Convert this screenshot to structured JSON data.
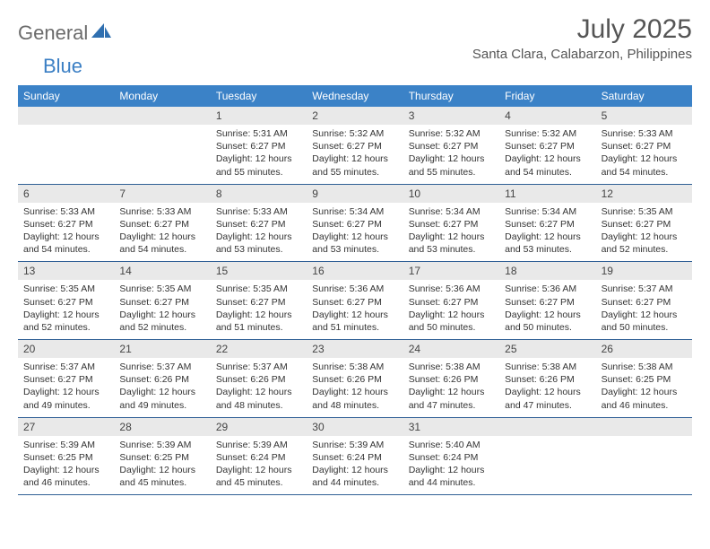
{
  "brand": {
    "text1": "General",
    "text2": "Blue"
  },
  "title": "July 2025",
  "location": "Santa Clara, Calabarzon, Philippines",
  "colors": {
    "header_bg": "#3b82c7",
    "header_text": "#ffffff",
    "daynum_band_bg": "#e9e9e9",
    "week_divider": "#2f5f95",
    "body_text": "#333333",
    "title_text": "#555555",
    "brand_grey": "#6b6b6b",
    "brand_blue": "#3b7fc4"
  },
  "typography": {
    "title_fontsize": 30,
    "location_fontsize": 15,
    "weekday_fontsize": 12,
    "daynum_fontsize": 12,
    "cell_fontsize": 10.5
  },
  "weekdays": [
    "Sunday",
    "Monday",
    "Tuesday",
    "Wednesday",
    "Thursday",
    "Friday",
    "Saturday"
  ],
  "weeks": [
    [
      null,
      null,
      {
        "n": "1",
        "sunrise": "5:31 AM",
        "sunset": "6:27 PM",
        "daylight": "12 hours and 55 minutes."
      },
      {
        "n": "2",
        "sunrise": "5:32 AM",
        "sunset": "6:27 PM",
        "daylight": "12 hours and 55 minutes."
      },
      {
        "n": "3",
        "sunrise": "5:32 AM",
        "sunset": "6:27 PM",
        "daylight": "12 hours and 55 minutes."
      },
      {
        "n": "4",
        "sunrise": "5:32 AM",
        "sunset": "6:27 PM",
        "daylight": "12 hours and 54 minutes."
      },
      {
        "n": "5",
        "sunrise": "5:33 AM",
        "sunset": "6:27 PM",
        "daylight": "12 hours and 54 minutes."
      }
    ],
    [
      {
        "n": "6",
        "sunrise": "5:33 AM",
        "sunset": "6:27 PM",
        "daylight": "12 hours and 54 minutes."
      },
      {
        "n": "7",
        "sunrise": "5:33 AM",
        "sunset": "6:27 PM",
        "daylight": "12 hours and 54 minutes."
      },
      {
        "n": "8",
        "sunrise": "5:33 AM",
        "sunset": "6:27 PM",
        "daylight": "12 hours and 53 minutes."
      },
      {
        "n": "9",
        "sunrise": "5:34 AM",
        "sunset": "6:27 PM",
        "daylight": "12 hours and 53 minutes."
      },
      {
        "n": "10",
        "sunrise": "5:34 AM",
        "sunset": "6:27 PM",
        "daylight": "12 hours and 53 minutes."
      },
      {
        "n": "11",
        "sunrise": "5:34 AM",
        "sunset": "6:27 PM",
        "daylight": "12 hours and 53 minutes."
      },
      {
        "n": "12",
        "sunrise": "5:35 AM",
        "sunset": "6:27 PM",
        "daylight": "12 hours and 52 minutes."
      }
    ],
    [
      {
        "n": "13",
        "sunrise": "5:35 AM",
        "sunset": "6:27 PM",
        "daylight": "12 hours and 52 minutes."
      },
      {
        "n": "14",
        "sunrise": "5:35 AM",
        "sunset": "6:27 PM",
        "daylight": "12 hours and 52 minutes."
      },
      {
        "n": "15",
        "sunrise": "5:35 AM",
        "sunset": "6:27 PM",
        "daylight": "12 hours and 51 minutes."
      },
      {
        "n": "16",
        "sunrise": "5:36 AM",
        "sunset": "6:27 PM",
        "daylight": "12 hours and 51 minutes."
      },
      {
        "n": "17",
        "sunrise": "5:36 AM",
        "sunset": "6:27 PM",
        "daylight": "12 hours and 50 minutes."
      },
      {
        "n": "18",
        "sunrise": "5:36 AM",
        "sunset": "6:27 PM",
        "daylight": "12 hours and 50 minutes."
      },
      {
        "n": "19",
        "sunrise": "5:37 AM",
        "sunset": "6:27 PM",
        "daylight": "12 hours and 50 minutes."
      }
    ],
    [
      {
        "n": "20",
        "sunrise": "5:37 AM",
        "sunset": "6:27 PM",
        "daylight": "12 hours and 49 minutes."
      },
      {
        "n": "21",
        "sunrise": "5:37 AM",
        "sunset": "6:26 PM",
        "daylight": "12 hours and 49 minutes."
      },
      {
        "n": "22",
        "sunrise": "5:37 AM",
        "sunset": "6:26 PM",
        "daylight": "12 hours and 48 minutes."
      },
      {
        "n": "23",
        "sunrise": "5:38 AM",
        "sunset": "6:26 PM",
        "daylight": "12 hours and 48 minutes."
      },
      {
        "n": "24",
        "sunrise": "5:38 AM",
        "sunset": "6:26 PM",
        "daylight": "12 hours and 47 minutes."
      },
      {
        "n": "25",
        "sunrise": "5:38 AM",
        "sunset": "6:26 PM",
        "daylight": "12 hours and 47 minutes."
      },
      {
        "n": "26",
        "sunrise": "5:38 AM",
        "sunset": "6:25 PM",
        "daylight": "12 hours and 46 minutes."
      }
    ],
    [
      {
        "n": "27",
        "sunrise": "5:39 AM",
        "sunset": "6:25 PM",
        "daylight": "12 hours and 46 minutes."
      },
      {
        "n": "28",
        "sunrise": "5:39 AM",
        "sunset": "6:25 PM",
        "daylight": "12 hours and 45 minutes."
      },
      {
        "n": "29",
        "sunrise": "5:39 AM",
        "sunset": "6:24 PM",
        "daylight": "12 hours and 45 minutes."
      },
      {
        "n": "30",
        "sunrise": "5:39 AM",
        "sunset": "6:24 PM",
        "daylight": "12 hours and 44 minutes."
      },
      {
        "n": "31",
        "sunrise": "5:40 AM",
        "sunset": "6:24 PM",
        "daylight": "12 hours and 44 minutes."
      },
      null,
      null
    ]
  ],
  "labels": {
    "sunrise_prefix": "Sunrise: ",
    "sunset_prefix": "Sunset: ",
    "daylight_prefix": "Daylight: "
  }
}
